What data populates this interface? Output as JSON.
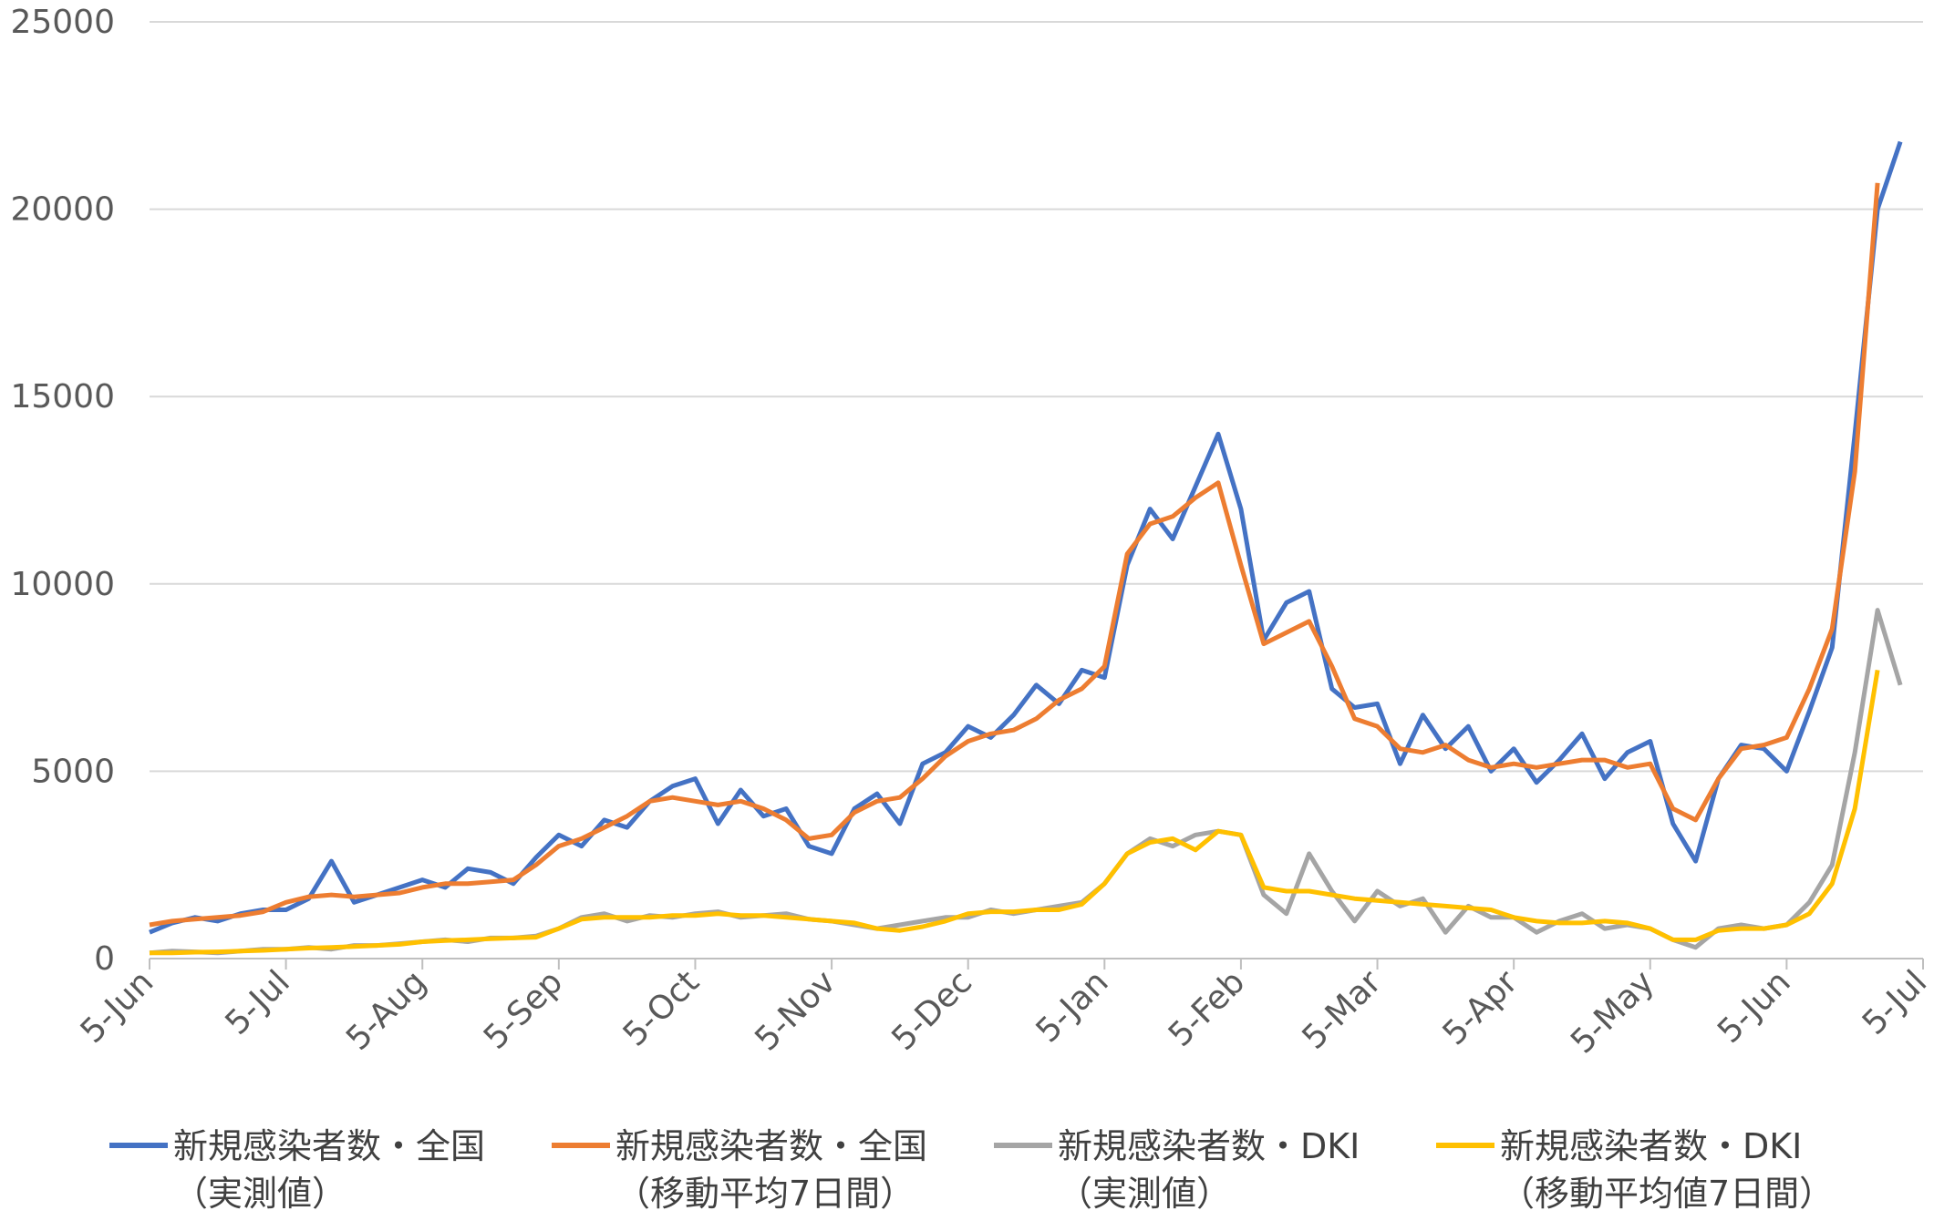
{
  "chart_data": {
    "type": "line",
    "x": [
      "5-Jun",
      "10-Jun",
      "15-Jun",
      "20-Jun",
      "25-Jun",
      "30-Jun",
      "5-Jul",
      "10-Jul",
      "15-Jul",
      "20-Jul",
      "25-Jul",
      "30-Jul",
      "5-Aug",
      "10-Aug",
      "15-Aug",
      "20-Aug",
      "25-Aug",
      "30-Aug",
      "5-Sep",
      "10-Sep",
      "15-Sep",
      "20-Sep",
      "25-Sep",
      "30-Sep",
      "5-Oct",
      "10-Oct",
      "15-Oct",
      "20-Oct",
      "25-Oct",
      "30-Oct",
      "5-Nov",
      "10-Nov",
      "15-Nov",
      "20-Nov",
      "25-Nov",
      "30-Nov",
      "5-Dec",
      "10-Dec",
      "15-Dec",
      "20-Dec",
      "25-Dec",
      "30-Dec",
      "5-Jan",
      "10-Jan",
      "15-Jan",
      "20-Jan",
      "25-Jan",
      "30-Jan",
      "5-Feb",
      "10-Feb",
      "15-Feb",
      "20-Feb",
      "25-Feb",
      "28-Feb",
      "5-Mar",
      "10-Mar",
      "15-Mar",
      "20-Mar",
      "25-Mar",
      "30-Mar",
      "5-Apr",
      "10-Apr",
      "15-Apr",
      "20-Apr",
      "25-Apr",
      "30-Apr",
      "5-May",
      "10-May",
      "15-May",
      "20-May",
      "25-May",
      "30-May",
      "5-Jun",
      "10-Jun",
      "15-Jun",
      "20-Jun",
      "25-Jun",
      "30-Jun",
      "5-Jul"
    ],
    "xticks": [
      "5-Jun",
      "5-Jul",
      "5-Aug",
      "5-Sep",
      "5-Oct",
      "5-Nov",
      "5-Dec",
      "5-Jan",
      "5-Feb",
      "5-Mar",
      "5-Apr",
      "5-May",
      "5-Jun",
      "5-Jul"
    ],
    "ylim": [
      0,
      25000
    ],
    "yticks": [
      0,
      5000,
      10000,
      15000,
      20000,
      25000
    ],
    "grid": true,
    "series": [
      {
        "name": "新規感染者数・全国（実測値）",
        "color": "#4472c4",
        "values": [
          700,
          950,
          1100,
          1000,
          1200,
          1300,
          1300,
          1600,
          2600,
          1500,
          1700,
          1900,
          2100,
          1900,
          2400,
          2300,
          2000,
          2700,
          3300,
          3000,
          3700,
          3500,
          4200,
          4600,
          4800,
          3600,
          4500,
          3800,
          4000,
          3000,
          2800,
          4000,
          4400,
          3600,
          5200,
          5500,
          6200,
          5900,
          6500,
          7300,
          6800,
          7700,
          7500,
          10500,
          12000,
          11200,
          12600,
          14000,
          12000,
          8500,
          9500,
          9800,
          7200,
          6700,
          6800,
          5200,
          6500,
          5600,
          6200,
          5000,
          5600,
          4700,
          5300,
          6000,
          4800,
          5500,
          5800,
          3600,
          2600,
          4800,
          5700,
          5600,
          5000,
          6600,
          8300,
          14000,
          20000,
          21800,
          null
        ]
      },
      {
        "name": "新規感染者数・全国（移動平均7日間）",
        "color": "#ed7d31",
        "values": [
          900,
          1000,
          1050,
          1100,
          1150,
          1250,
          1500,
          1650,
          1700,
          1650,
          1700,
          1750,
          1900,
          2000,
          2000,
          2050,
          2100,
          2500,
          3000,
          3200,
          3500,
          3800,
          4200,
          4300,
          4200,
          4100,
          4200,
          4000,
          3700,
          3200,
          3300,
          3900,
          4200,
          4300,
          4800,
          5400,
          5800,
          6000,
          6100,
          6400,
          6900,
          7200,
          7800,
          10800,
          11600,
          11800,
          12300,
          12700,
          10500,
          8400,
          8700,
          9000,
          7800,
          6400,
          6200,
          5600,
          5500,
          5700,
          5300,
          5100,
          5200,
          5100,
          5200,
          5300,
          5300,
          5100,
          5200,
          4000,
          3700,
          4800,
          5600,
          5700,
          5900,
          7200,
          8800,
          13000,
          20700,
          null,
          null
        ]
      },
      {
        "name": "新規感染者数・DKI（実測値）",
        "color": "#a5a5a5",
        "values": [
          150,
          200,
          180,
          150,
          200,
          250,
          250,
          300,
          250,
          350,
          350,
          400,
          450,
          500,
          450,
          550,
          550,
          600,
          800,
          1100,
          1200,
          1000,
          1150,
          1100,
          1200,
          1250,
          1100,
          1150,
          1200,
          1050,
          1000,
          900,
          800,
          900,
          1000,
          1100,
          1100,
          1300,
          1200,
          1300,
          1400,
          1500,
          2000,
          2800,
          3200,
          3000,
          3300,
          3400,
          3300,
          1700,
          1200,
          2800,
          1800,
          1000,
          1800,
          1400,
          1600,
          700,
          1400,
          1100,
          1100,
          700,
          1000,
          1200,
          800,
          900,
          800,
          500,
          300,
          800,
          900,
          800,
          900,
          1500,
          2500,
          5500,
          9300,
          7300,
          null
        ]
      },
      {
        "name": "新規感染者数・DKI（移動平均値7日間）",
        "color": "#ffc000",
        "values": [
          150,
          150,
          170,
          180,
          200,
          220,
          250,
          280,
          300,
          320,
          350,
          380,
          450,
          480,
          500,
          530,
          550,
          570,
          800,
          1050,
          1100,
          1100,
          1100,
          1150,
          1150,
          1200,
          1150,
          1150,
          1100,
          1050,
          1000,
          950,
          800,
          750,
          850,
          1000,
          1200,
          1250,
          1250,
          1300,
          1300,
          1450,
          2000,
          2800,
          3100,
          3200,
          2900,
          3400,
          3300,
          1900,
          1800,
          1800,
          1700,
          1600,
          1550,
          1500,
          1450,
          1400,
          1350,
          1300,
          1100,
          1000,
          950,
          950,
          1000,
          950,
          800,
          500,
          500,
          750,
          800,
          800,
          900,
          1200,
          2000,
          4000,
          7700,
          null,
          null
        ]
      }
    ]
  }
}
